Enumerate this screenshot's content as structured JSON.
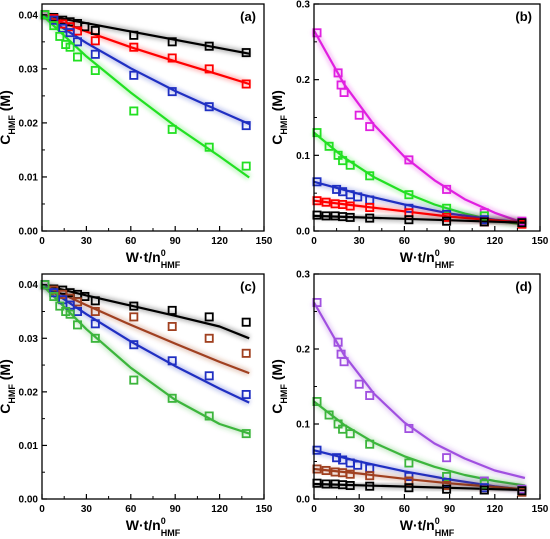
{
  "chart_data": [
    {
      "type": "scatter",
      "panel_label": "(a)",
      "xlabel": {
        "main": "W·t/n",
        "sup": "0",
        "sub": "HMF"
      },
      "ylabel": {
        "main": "C",
        "sub": "HMF",
        "unit": " (M)"
      },
      "xlim": [
        0,
        150
      ],
      "ylim": [
        0,
        0.042
      ],
      "xticks": [
        0,
        30,
        60,
        90,
        120,
        150
      ],
      "xtick_labels": [
        "0",
        "30",
        "60",
        "90",
        "120",
        "150"
      ],
      "yticks": [
        0,
        0.01,
        0.02,
        0.03,
        0.04
      ],
      "ytick_labels": [
        "0.00",
        "0.01",
        "0.02",
        "0.03",
        "0.04"
      ],
      "series": [
        {
          "color": "#000000",
          "x": [
            2,
            8,
            14,
            19,
            24,
            29,
            36,
            62,
            88,
            113,
            138
          ],
          "y": [
            0.04,
            0.0395,
            0.039,
            0.0387,
            0.0384,
            0.0378,
            0.0371,
            0.0362,
            0.035,
            0.0342,
            0.033
          ],
          "fit_x": [
            0,
            140
          ],
          "fit_y": [
            0.04,
            0.0328
          ]
        },
        {
          "color": "#ff0000",
          "x": [
            2,
            8,
            14,
            19,
            24,
            36,
            62,
            88,
            113,
            138
          ],
          "y": [
            0.04,
            0.0393,
            0.0383,
            0.0378,
            0.037,
            0.0352,
            0.034,
            0.032,
            0.03,
            0.0272
          ],
          "fit_x": [
            0,
            30,
            60,
            90,
            120,
            140
          ],
          "fit_y": [
            0.04,
            0.0369,
            0.034,
            0.0314,
            0.0289,
            0.0272
          ]
        },
        {
          "color": "#1f2fc2",
          "x": [
            2,
            8,
            14,
            19,
            24,
            36,
            62,
            88,
            113,
            138
          ],
          "y": [
            0.04,
            0.039,
            0.0375,
            0.0367,
            0.035,
            0.0327,
            0.0288,
            0.0258,
            0.023,
            0.0195
          ],
          "fit_x": [
            0,
            30,
            60,
            90,
            120,
            140
          ],
          "fit_y": [
            0.04,
            0.0348,
            0.0301,
            0.0259,
            0.0222,
            0.0198
          ]
        },
        {
          "color": "#22e022",
          "x": [
            2,
            8,
            12,
            16,
            19,
            24,
            36,
            62,
            88,
            113,
            138
          ],
          "y": [
            0.04,
            0.038,
            0.036,
            0.0345,
            0.034,
            0.0322,
            0.0297,
            0.0222,
            0.0188,
            0.0155,
            0.012
          ],
          "fit_x": [
            0,
            30,
            60,
            90,
            120,
            140
          ],
          "fit_y": [
            0.04,
            0.0323,
            0.0256,
            0.0194,
            0.0138,
            0.0099
          ]
        }
      ]
    },
    {
      "type": "scatter",
      "panel_label": "(b)",
      "xlabel": {
        "main": "W·t/n",
        "sup": "0",
        "sub": "HMF"
      },
      "ylabel": {
        "main": "C",
        "sub": "HMF",
        "unit": " (M)"
      },
      "xlim": [
        0,
        150
      ],
      "ylim": [
        0,
        0.3
      ],
      "xticks": [
        0,
        30,
        60,
        90,
        120,
        150
      ],
      "xtick_labels": [
        "0",
        "30",
        "60",
        "90",
        "120",
        "150"
      ],
      "yticks": [
        0,
        0.1,
        0.2,
        0.3
      ],
      "ytick_labels": [
        "0.0",
        "0.1",
        "0.2",
        "0.3"
      ],
      "series": [
        {
          "color": "#e020e0",
          "x": [
            2,
            16,
            18,
            20,
            30,
            37,
            63,
            88,
            113,
            138
          ],
          "y": [
            0.262,
            0.209,
            0.193,
            0.183,
            0.153,
            0.138,
            0.094,
            0.055,
            0.024,
            0.013
          ],
          "fit_x": [
            0,
            20,
            40,
            60,
            80,
            100,
            120,
            140
          ],
          "fit_y": [
            0.265,
            0.194,
            0.14,
            0.098,
            0.067,
            0.042,
            0.024,
            0.01
          ]
        },
        {
          "color": "#22e022",
          "x": [
            2,
            10,
            16,
            19,
            24,
            37,
            63,
            88,
            113,
            138
          ],
          "y": [
            0.13,
            0.112,
            0.1,
            0.093,
            0.087,
            0.073,
            0.048,
            0.03,
            0.02,
            0.01
          ],
          "fit_x": [
            0,
            20,
            40,
            60,
            80,
            100,
            120,
            140
          ],
          "fit_y": [
            0.13,
            0.097,
            0.071,
            0.051,
            0.035,
            0.023,
            0.014,
            0.008
          ]
        },
        {
          "color": "#1f2fc2",
          "x": [
            2,
            15,
            19,
            24,
            29,
            37,
            63,
            88,
            113,
            138
          ],
          "y": [
            0.065,
            0.055,
            0.052,
            0.048,
            0.045,
            0.041,
            0.03,
            0.022,
            0.015,
            0.01
          ],
          "fit_x": [
            0,
            30,
            60,
            90,
            120,
            140
          ],
          "fit_y": [
            0.065,
            0.049,
            0.035,
            0.023,
            0.015,
            0.011
          ]
        },
        {
          "color": "#ff0000",
          "x": [
            2,
            8,
            14,
            19,
            24,
            37,
            63,
            88,
            113,
            138
          ],
          "y": [
            0.04,
            0.038,
            0.036,
            0.035,
            0.033,
            0.031,
            0.024,
            0.018,
            0.012,
            0.009
          ],
          "fit_x": [
            0,
            30,
            60,
            90,
            120,
            140
          ],
          "fit_y": [
            0.04,
            0.033,
            0.026,
            0.019,
            0.014,
            0.011
          ]
        },
        {
          "color": "#000000",
          "x": [
            2,
            8,
            14,
            19,
            24,
            37,
            63,
            88,
            113,
            138
          ],
          "y": [
            0.021,
            0.02,
            0.02,
            0.019,
            0.018,
            0.017,
            0.015,
            0.013,
            0.012,
            0.011
          ],
          "fit_x": [
            0,
            140
          ],
          "fit_y": [
            0.02,
            0.011
          ]
        }
      ]
    },
    {
      "type": "scatter",
      "panel_label": "(c)",
      "xlabel": {
        "main": "W·t/n",
        "sup": "0",
        "sub": "HMF"
      },
      "ylabel": {
        "main": "C",
        "sub": "HMF",
        "unit": " (M)"
      },
      "xlim": [
        0,
        150
      ],
      "ylim": [
        0,
        0.042
      ],
      "xticks": [
        0,
        30,
        60,
        90,
        120,
        150
      ],
      "xtick_labels": [
        "0",
        "30",
        "60",
        "90",
        "120",
        "150"
      ],
      "yticks": [
        0,
        0.01,
        0.02,
        0.03,
        0.04
      ],
      "ytick_labels": [
        "0.00",
        "0.01",
        "0.02",
        "0.03",
        "0.04"
      ],
      "series": [
        {
          "color": "#000000",
          "x": [
            2,
            8,
            14,
            19,
            24,
            29,
            36,
            62,
            88,
            113,
            138
          ],
          "y": [
            0.04,
            0.0392,
            0.039,
            0.0385,
            0.0382,
            0.0378,
            0.037,
            0.036,
            0.0352,
            0.034,
            0.033
          ],
          "fit_x": [
            0,
            30,
            60,
            90,
            120,
            140
          ],
          "fit_y": [
            0.04,
            0.038,
            0.0361,
            0.0342,
            0.0322,
            0.03
          ]
        },
        {
          "color": "#a04020",
          "x": [
            2,
            8,
            14,
            19,
            24,
            36,
            62,
            88,
            113,
            138
          ],
          "y": [
            0.04,
            0.039,
            0.0382,
            0.0375,
            0.0368,
            0.035,
            0.034,
            0.0322,
            0.03,
            0.0272
          ],
          "fit_x": [
            0,
            30,
            60,
            90,
            120,
            140
          ],
          "fit_y": [
            0.04,
            0.0362,
            0.0325,
            0.029,
            0.0256,
            0.0235
          ]
        },
        {
          "color": "#1f2fc2",
          "x": [
            2,
            8,
            14,
            19,
            24,
            36,
            62,
            88,
            113,
            138
          ],
          "y": [
            0.04,
            0.0385,
            0.0372,
            0.0362,
            0.035,
            0.0327,
            0.0288,
            0.0258,
            0.023,
            0.0195
          ],
          "fit_x": [
            0,
            30,
            60,
            90,
            120,
            140
          ],
          "fit_y": [
            0.04,
            0.0345,
            0.0294,
            0.0248,
            0.0206,
            0.018
          ]
        },
        {
          "color": "#3cb53c",
          "x": [
            2,
            8,
            12,
            16,
            19,
            24,
            36,
            62,
            88,
            113,
            138
          ],
          "y": [
            0.04,
            0.0378,
            0.036,
            0.035,
            0.0345,
            0.0325,
            0.03,
            0.0222,
            0.0188,
            0.0155,
            0.0122
          ],
          "fit_x": [
            0,
            30,
            60,
            90,
            120,
            140
          ],
          "fit_y": [
            0.04,
            0.0317,
            0.0245,
            0.0185,
            0.014,
            0.0122
          ]
        }
      ]
    },
    {
      "type": "scatter",
      "panel_label": "(d)",
      "xlabel": {
        "main": "W·t/n",
        "sup": "0",
        "sub": "HMF"
      },
      "ylabel": {
        "main": "C",
        "sub": "HMF",
        "unit": " (M)"
      },
      "xlim": [
        0,
        150
      ],
      "ylim": [
        0,
        0.3
      ],
      "xticks": [
        0,
        30,
        60,
        90,
        120,
        150
      ],
      "xtick_labels": [
        "0",
        "30",
        "60",
        "90",
        "120",
        "150"
      ],
      "yticks": [
        0,
        0.1,
        0.2,
        0.3
      ],
      "ytick_labels": [
        "0.0",
        "0.1",
        "0.2",
        "0.3"
      ],
      "series": [
        {
          "color": "#a050e0",
          "x": [
            2,
            16,
            18,
            20,
            30,
            37,
            63,
            88,
            113,
            138
          ],
          "y": [
            0.262,
            0.209,
            0.193,
            0.183,
            0.153,
            0.138,
            0.094,
            0.055,
            0.024,
            0.013
          ],
          "fit_x": [
            0,
            20,
            40,
            60,
            80,
            100,
            120,
            140
          ],
          "fit_y": [
            0.262,
            0.192,
            0.14,
            0.102,
            0.074,
            0.054,
            0.038,
            0.028
          ]
        },
        {
          "color": "#3cb53c",
          "x": [
            2,
            10,
            16,
            19,
            24,
            37,
            63,
            88,
            113,
            138
          ],
          "y": [
            0.13,
            0.112,
            0.1,
            0.093,
            0.087,
            0.073,
            0.048,
            0.03,
            0.02,
            0.01
          ],
          "fit_x": [
            0,
            20,
            40,
            60,
            80,
            100,
            120,
            140
          ],
          "fit_y": [
            0.13,
            0.099,
            0.075,
            0.057,
            0.043,
            0.032,
            0.024,
            0.018
          ]
        },
        {
          "color": "#1f2fc2",
          "x": [
            2,
            15,
            19,
            24,
            29,
            37,
            63,
            88,
            113,
            138
          ],
          "y": [
            0.065,
            0.055,
            0.052,
            0.048,
            0.045,
            0.041,
            0.03,
            0.022,
            0.015,
            0.01
          ],
          "fit_x": [
            0,
            30,
            60,
            90,
            120,
            140
          ],
          "fit_y": [
            0.065,
            0.05,
            0.037,
            0.026,
            0.017,
            0.012
          ]
        },
        {
          "color": "#a04020",
          "x": [
            2,
            8,
            14,
            19,
            24,
            37,
            63,
            88,
            113,
            138
          ],
          "y": [
            0.04,
            0.038,
            0.036,
            0.035,
            0.033,
            0.031,
            0.024,
            0.018,
            0.012,
            0.009
          ],
          "fit_x": [
            0,
            30,
            60,
            90,
            120,
            140
          ],
          "fit_y": [
            0.04,
            0.034,
            0.027,
            0.021,
            0.016,
            0.013
          ]
        },
        {
          "color": "#000000",
          "x": [
            2,
            8,
            14,
            19,
            24,
            37,
            63,
            88,
            113,
            138
          ],
          "y": [
            0.021,
            0.02,
            0.02,
            0.019,
            0.018,
            0.017,
            0.015,
            0.013,
            0.012,
            0.011
          ],
          "fit_x": [
            0,
            140
          ],
          "fit_y": [
            0.02,
            0.012
          ]
        }
      ]
    }
  ]
}
